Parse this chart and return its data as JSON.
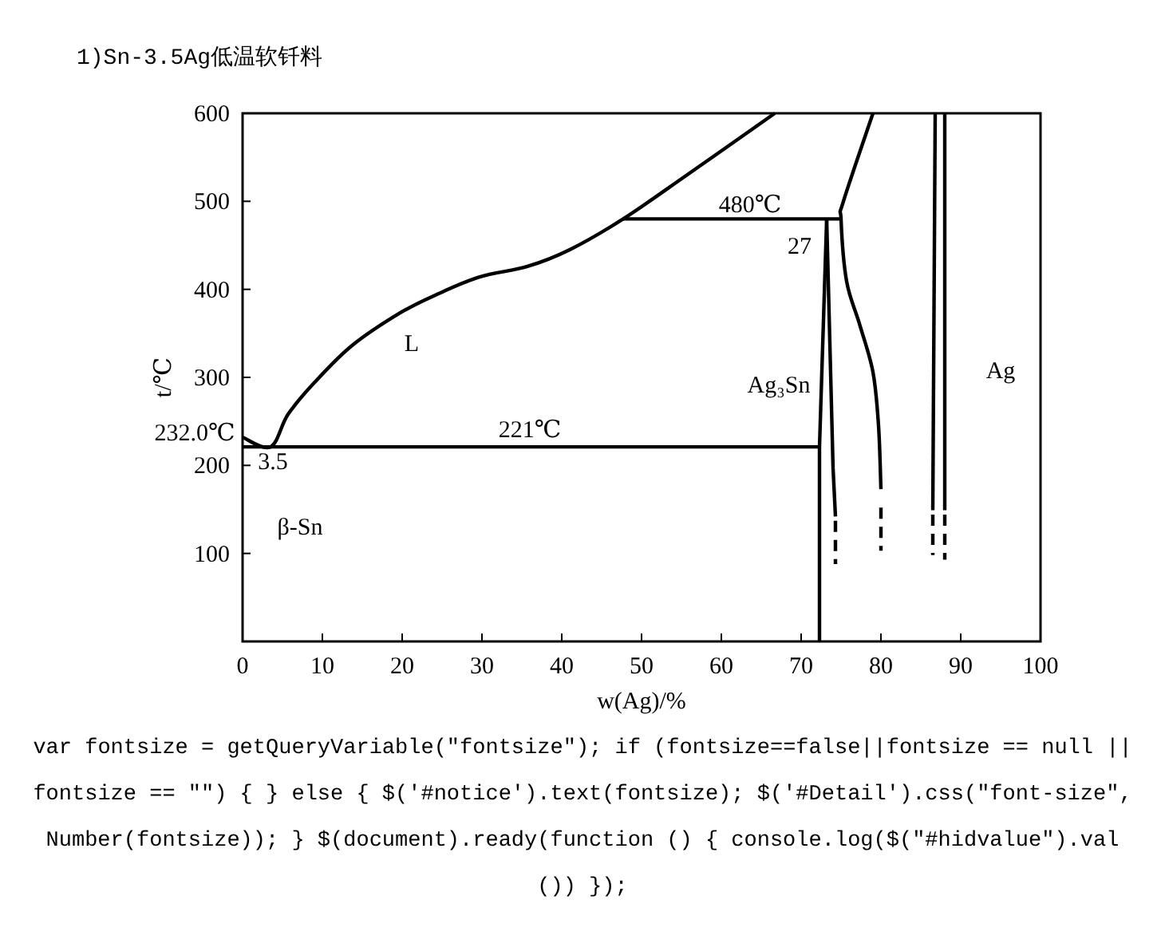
{
  "chart_data": {
    "type": "line",
    "title": "1)Sn-3.5Ag低温软钎料",
    "xlabel": "w(Ag)/%",
    "ylabel": "t/℃",
    "xlim": [
      0,
      100
    ],
    "ylim": [
      0,
      600
    ],
    "xticks": [
      0,
      10,
      20,
      30,
      40,
      50,
      60,
      70,
      80,
      90,
      100
    ],
    "yticks": [
      100,
      200,
      300,
      400,
      500,
      600
    ],
    "series": [
      {
        "color": "#000000",
        "x": [
          0,
          3.5,
          5.7,
          9,
          13.7,
          19.7,
          24.3,
          29.7,
          35.7,
          41,
          47.7,
          55.7,
          66.7
        ],
        "values": [
          232,
          221,
          258,
          294,
          336,
          373,
          394,
          414,
          426,
          445,
          480,
          530,
          600
        ]
      },
      {
        "color": "#000000",
        "x": [
          0,
          72.3
        ],
        "values": [
          221,
          221
        ]
      },
      {
        "color": "#000000",
        "x": [
          47.7,
          75
        ],
        "values": [
          480,
          480
        ]
      },
      {
        "color": "#000000",
        "x": [
          73.2,
          72.3,
          72.3
        ],
        "values": [
          480,
          221,
          0
        ]
      },
      {
        "color": "#000000",
        "x": [
          73.2,
          74,
          74.3
        ],
        "values": [
          480,
          197,
          142
        ]
      },
      {
        "color": "#000000",
        "x": [
          74.3,
          74.3
        ],
        "values": [
          137,
          88
        ],
        "line_style": "dashed"
      },
      {
        "color": "#000000",
        "x": [
          79,
          75.3,
          75,
          75.7,
          77.3,
          79,
          79.7,
          80
        ],
        "values": [
          600,
          500,
          480,
          409,
          361,
          306,
          245,
          173
        ]
      },
      {
        "color": "#000000",
        "x": [
          80,
          80
        ],
        "values": [
          152,
          103
        ],
        "line_style": "dashed"
      },
      {
        "color": "#000000",
        "x": [
          86.8,
          86.5
        ],
        "values": [
          600,
          149
        ]
      },
      {
        "color": "#000000",
        "x": [
          86.5,
          86.5
        ],
        "values": [
          144,
          98
        ],
        "line_style": "dashed"
      },
      {
        "color": "#000000",
        "x": [
          88,
          88
        ],
        "values": [
          600,
          149
        ]
      },
      {
        "color": "#000000",
        "x": [
          88,
          88
        ],
        "values": [
          144,
          93
        ],
        "line_style": "dashed"
      }
    ],
    "annotations": [
      "L",
      "β-Sn",
      "Ag₃Sn",
      "Ag",
      "480℃",
      "221℃",
      "232.0℃",
      "3.5",
      "27",
      "var fontsize = getQueryVariable(\"fontsize\"); if (fontsize==false||fontsize == null || fontsize == \"\") { } else { $('#notice').text(fontsize); $('#Detail').css(\"font-size\", Number(fontsize)); } $(document).ready(function () { console.log($(\"#hidvalue\").val ()) });"
    ]
  }
}
